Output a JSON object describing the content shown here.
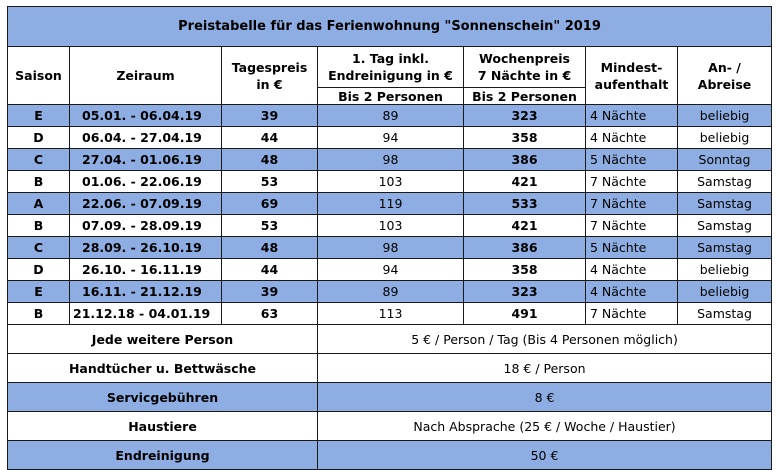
{
  "title": "Preistabelle für das Ferienwohnung \"Sonnenschein\" 2019",
  "headers": {
    "saison": "Saison",
    "zeitraum": "Zeiraum",
    "tagespreis_1": "Tagespreis",
    "tagespreis_2": "in €",
    "erster_tag_1": "1. Tag inkl.",
    "erster_tag_2": "Endreinigung in €",
    "erster_tag_sub": "Bis 2 Personen",
    "wochenpreis_1": "Wochenpreis",
    "wochenpreis_2": "7 Nächte in €",
    "wochenpreis_sub": "Bis 2 Personen",
    "mindest_1": "Mindest-",
    "mindest_2": "aufenthalt",
    "an_1": "An- /",
    "an_2": "Abreise"
  },
  "rows": [
    {
      "saison": "E",
      "zeitraum": "05.01. - 06.04.19",
      "tagespreis": "39",
      "erster_tag": "89",
      "wochenpreis": "323",
      "mindest": "4 Nächte",
      "anreise": "beliebig"
    },
    {
      "saison": "D",
      "zeitraum": "06.04. - 27.04.19",
      "tagespreis": "44",
      "erster_tag": "94",
      "wochenpreis": "358",
      "mindest": "4 Nächte",
      "anreise": "beliebig"
    },
    {
      "saison": "C",
      "zeitraum": "27.04. - 01.06.19",
      "tagespreis": "48",
      "erster_tag": "98",
      "wochenpreis": "386",
      "mindest": "5 Nächte",
      "anreise": "Sonntag"
    },
    {
      "saison": "B",
      "zeitraum": "01.06. - 22.06.19",
      "tagespreis": "53",
      "erster_tag": "103",
      "wochenpreis": "421",
      "mindest": "7 Nächte",
      "anreise": "Samstag"
    },
    {
      "saison": "A",
      "zeitraum": "22.06. - 07.09.19",
      "tagespreis": "69",
      "erster_tag": "119",
      "wochenpreis": "533",
      "mindest": "7 Nächte",
      "anreise": "Samstag"
    },
    {
      "saison": "B",
      "zeitraum": "07.09. - 28.09.19",
      "tagespreis": "53",
      "erster_tag": "103",
      "wochenpreis": "421",
      "mindest": "7 Nächte",
      "anreise": "Samstag"
    },
    {
      "saison": "C",
      "zeitraum": "28.09. - 26.10.19",
      "tagespreis": "48",
      "erster_tag": "98",
      "wochenpreis": "386",
      "mindest": "5 Nächte",
      "anreise": "Samstag"
    },
    {
      "saison": "D",
      "zeitraum": "26.10. - 16.11.19",
      "tagespreis": "44",
      "erster_tag": "94",
      "wochenpreis": "358",
      "mindest": "4 Nächte",
      "anreise": "beliebig"
    },
    {
      "saison": "E",
      "zeitraum": "16.11. - 21.12.19",
      "tagespreis": "39",
      "erster_tag": "89",
      "wochenpreis": "323",
      "mindest": "4 Nächte",
      "anreise": "beliebig"
    },
    {
      "saison": "B",
      "zeitraum": "21.12.18 - 04.01.19",
      "tagespreis": "63",
      "erster_tag": "113",
      "wochenpreis": "491",
      "mindest": "7 Nächte",
      "anreise": "Samstag"
    }
  ],
  "extras": [
    {
      "label": "Jede weitere Person",
      "value": "5 € / Person / Tag (Bis 4 Personen möglich)"
    },
    {
      "label": "Handtücher u. Bettwäsche",
      "value": "18 € / Person"
    },
    {
      "label": "Servicgebühren",
      "value": "8 €"
    },
    {
      "label": "Haustiere",
      "value": "Nach Absprache (25 € / Woche / Haustier)"
    },
    {
      "label": "Endreinigung",
      "value": "50 €"
    }
  ],
  "colors": {
    "highlight": "#8eaee3",
    "border": "#1a1a1a"
  }
}
